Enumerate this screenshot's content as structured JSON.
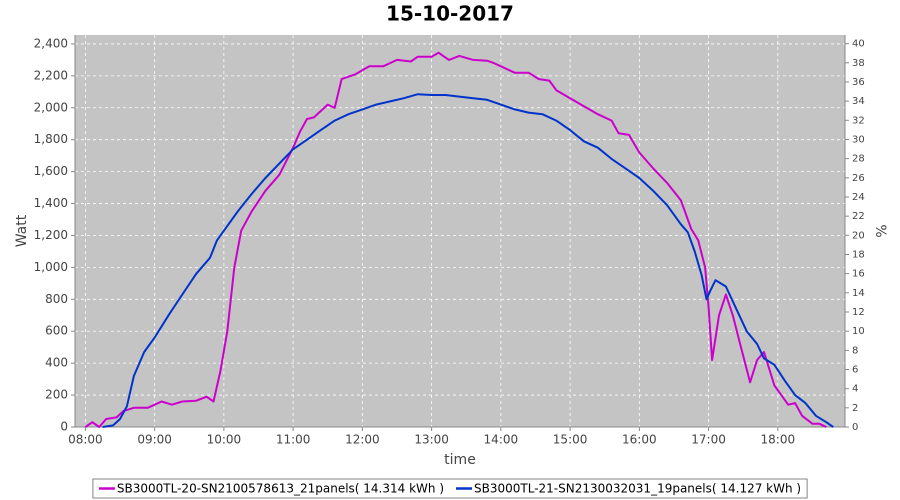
{
  "chart_data": {
    "type": "line",
    "title": "15-10-2017",
    "x_label": "time",
    "y_label": "Watt",
    "y2_label": "%",
    "xlim": [
      7.85,
      18.97
    ],
    "xticks": [
      {
        "value": 8,
        "label": "08:00"
      },
      {
        "value": 9,
        "label": "09:00"
      },
      {
        "value": 10,
        "label": "10:00"
      },
      {
        "value": 11,
        "label": "11:00"
      },
      {
        "value": 12,
        "label": "12:00"
      },
      {
        "value": 13,
        "label": "13:00"
      },
      {
        "value": 14,
        "label": "14:00"
      },
      {
        "value": 15,
        "label": "15:00"
      },
      {
        "value": 16,
        "label": "16:00"
      },
      {
        "value": 17,
        "label": "17:00"
      },
      {
        "value": 18,
        "label": "18:00"
      }
    ],
    "ylim": [
      0,
      2456
    ],
    "yticks": [
      0,
      200,
      400,
      600,
      800,
      {
        "value": 1000,
        "label": "1,000"
      },
      {
        "value": 1200,
        "label": "1,200"
      },
      {
        "value": 1400,
        "label": "1,400"
      },
      {
        "value": 1600,
        "label": "1,600"
      },
      {
        "value": 1800,
        "label": "1,800"
      },
      {
        "value": 2000,
        "label": "2,000"
      },
      {
        "value": 2200,
        "label": "2,200"
      },
      {
        "value": 2400,
        "label": "2,400"
      }
    ],
    "y2lim": [
      0,
      40.9
    ],
    "y2ticks": [
      0,
      2,
      4,
      6,
      8,
      10,
      12,
      14,
      16,
      18,
      20,
      22,
      24,
      26,
      28,
      30,
      32,
      34,
      36,
      38,
      40
    ],
    "grid": true,
    "legend": "bottom",
    "series": [
      {
        "name": "SB3000TL-20-SN2100578613_21panels( 14.314 kWh )",
        "color": "#cc00cc",
        "x": [
          8.0,
          8.1,
          8.2,
          8.3,
          8.45,
          8.55,
          8.7,
          8.9,
          9.1,
          9.25,
          9.4,
          9.6,
          9.75,
          9.85,
          9.95,
          10.05,
          10.15,
          10.25,
          10.4,
          10.6,
          10.8,
          11.0,
          11.1,
          11.2,
          11.3,
          11.5,
          11.6,
          11.7,
          11.9,
          12.1,
          12.3,
          12.5,
          12.7,
          12.8,
          13.0,
          13.1,
          13.25,
          13.4,
          13.6,
          13.8,
          13.9,
          14.0,
          14.2,
          14.4,
          14.55,
          14.7,
          14.8,
          15.0,
          15.2,
          15.4,
          15.6,
          15.7,
          15.85,
          16.0,
          16.2,
          16.4,
          16.6,
          16.75,
          16.85,
          16.95,
          17.0,
          17.05,
          17.15,
          17.25,
          17.35,
          17.45,
          17.6,
          17.7,
          17.8,
          17.95,
          18.05,
          18.15,
          18.25,
          18.35,
          18.5,
          18.6,
          18.7
        ],
        "values": [
          0,
          30,
          0,
          50,
          60,
          100,
          120,
          120,
          160,
          140,
          160,
          165,
          190,
          160,
          350,
          600,
          1000,
          1230,
          1350,
          1480,
          1580,
          1750,
          1850,
          1930,
          1940,
          2020,
          2000,
          2180,
          2210,
          2260,
          2260,
          2300,
          2290,
          2320,
          2320,
          2345,
          2300,
          2325,
          2300,
          2295,
          2280,
          2260,
          2220,
          2220,
          2180,
          2170,
          2110,
          2060,
          2010,
          1960,
          1920,
          1840,
          1830,
          1720,
          1620,
          1530,
          1420,
          1240,
          1170,
          1000,
          750,
          420,
          700,
          830,
          700,
          530,
          280,
          420,
          470,
          260,
          200,
          140,
          150,
          70,
          20,
          20,
          0
        ]
      },
      {
        "name": "SB3000TL-21-SN2130032031_19panels( 14.127 kWh )",
        "color": "#0033cc",
        "x": [
          8.25,
          8.4,
          8.5,
          8.6,
          8.7,
          8.85,
          9.0,
          9.2,
          9.4,
          9.6,
          9.8,
          9.9,
          10.0,
          10.2,
          10.4,
          10.6,
          10.8,
          11.0,
          11.2,
          11.4,
          11.6,
          11.8,
          12.0,
          12.2,
          12.4,
          12.6,
          12.8,
          13.0,
          13.2,
          13.4,
          13.6,
          13.8,
          14.0,
          14.2,
          14.4,
          14.6,
          14.8,
          15.0,
          15.2,
          15.4,
          15.6,
          15.8,
          16.0,
          16.2,
          16.4,
          16.6,
          16.7,
          16.8,
          16.9,
          16.97,
          17.02,
          17.1,
          17.25,
          17.4,
          17.55,
          17.7,
          17.8,
          17.95,
          18.1,
          18.25,
          18.4,
          18.55,
          18.7,
          18.8
        ],
        "values": [
          0,
          10,
          50,
          130,
          320,
          470,
          560,
          700,
          830,
          960,
          1060,
          1170,
          1230,
          1350,
          1460,
          1560,
          1650,
          1740,
          1800,
          1860,
          1920,
          1960,
          1990,
          2020,
          2040,
          2060,
          2085,
          2080,
          2080,
          2070,
          2060,
          2050,
          2020,
          1990,
          1970,
          1960,
          1920,
          1860,
          1790,
          1750,
          1680,
          1620,
          1560,
          1480,
          1390,
          1270,
          1220,
          1100,
          950,
          800,
          850,
          920,
          880,
          740,
          600,
          520,
          430,
          390,
          290,
          200,
          150,
          70,
          30,
          0
        ]
      }
    ]
  }
}
